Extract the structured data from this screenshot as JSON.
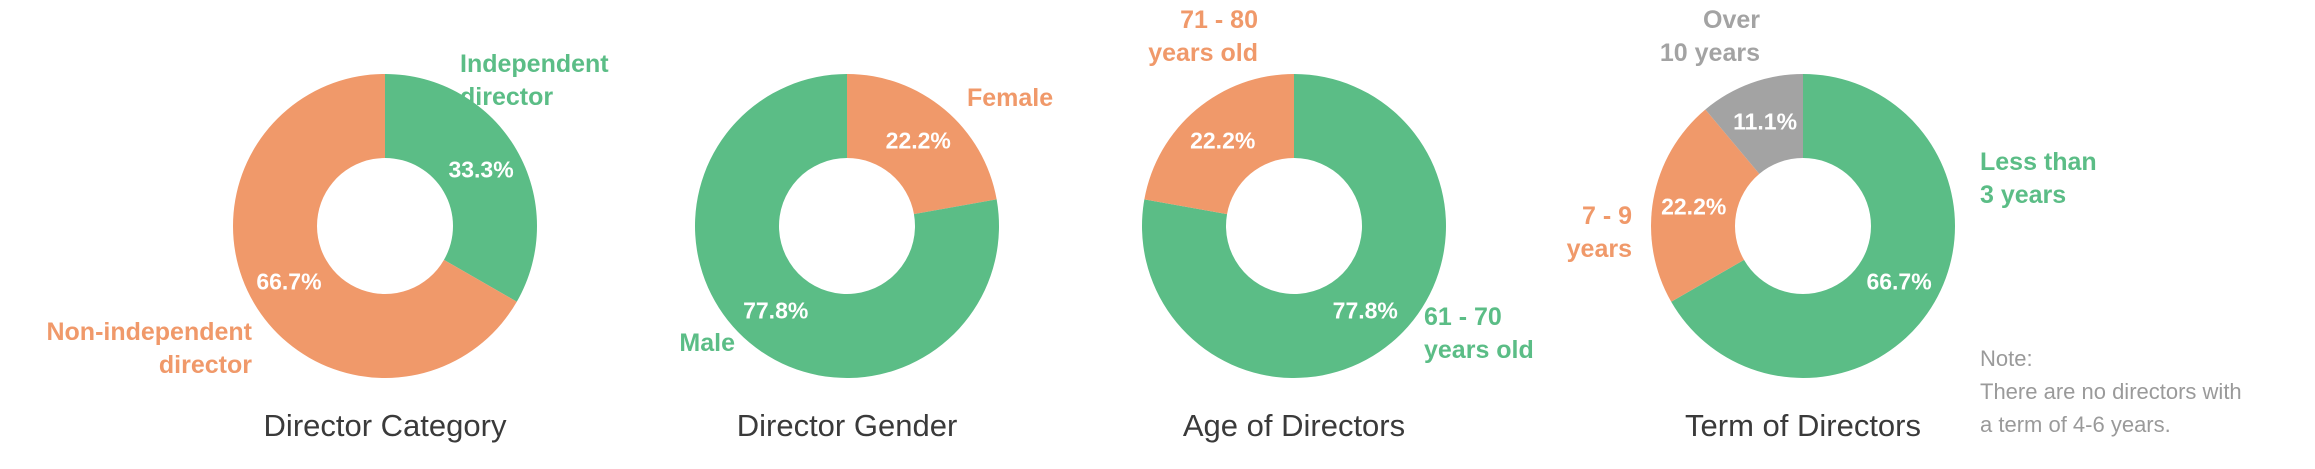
{
  "colors": {
    "green": "#5bbd86",
    "orange": "#f0996a",
    "gray": "#a3a3a3",
    "title": "#3a3a3a",
    "note": "#9a9a9a"
  },
  "chart_data": [
    {
      "type": "pie",
      "title": "Director Category",
      "slices": [
        {
          "label": [
            "Independent",
            "director"
          ],
          "value": 33.3,
          "display": "33.3%",
          "color": "green"
        },
        {
          "label": [
            "Non-independent",
            "director"
          ],
          "value": 66.7,
          "display": "66.7%",
          "color": "orange"
        }
      ]
    },
    {
      "type": "pie",
      "title": "Director Gender",
      "slices": [
        {
          "label": [
            "Female"
          ],
          "value": 22.2,
          "display": "22.2%",
          "color": "orange"
        },
        {
          "label": [
            "Male"
          ],
          "value": 77.8,
          "display": "77.8%",
          "color": "green"
        }
      ]
    },
    {
      "type": "pie",
      "title": "Age of Directors",
      "slices": [
        {
          "label": [
            "61 - 70",
            "years old"
          ],
          "value": 77.8,
          "display": "77.8%",
          "color": "green"
        },
        {
          "label": [
            "71 - 80",
            "years old"
          ],
          "value": 22.2,
          "display": "22.2%",
          "color": "orange"
        }
      ]
    },
    {
      "type": "pie",
      "title": "Term of Directors",
      "slices": [
        {
          "label": [
            "Less than",
            "3 years"
          ],
          "value": 66.7,
          "display": "66.7%",
          "color": "green"
        },
        {
          "label": [
            "7 - 9",
            "years"
          ],
          "value": 22.2,
          "display": "22.2%",
          "color": "orange"
        },
        {
          "label": [
            "Over",
            "10 years"
          ],
          "value": 11.1,
          "display": "11.1%",
          "color": "gray"
        }
      ]
    }
  ],
  "note": {
    "heading": "Note:",
    "line1": "There are no directors with",
    "line2": "a term of 4-6 years."
  }
}
